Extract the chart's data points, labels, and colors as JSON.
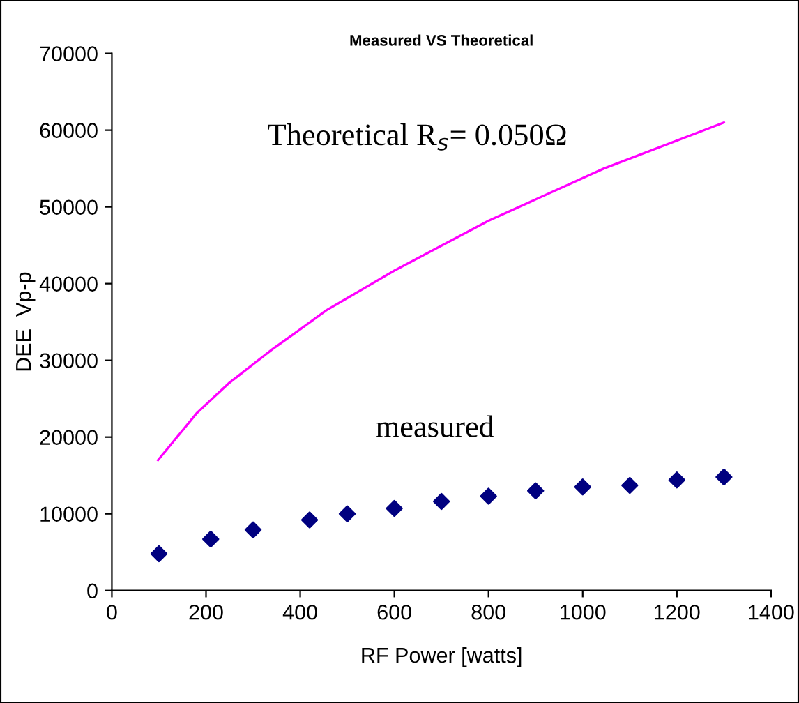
{
  "chart_data": {
    "type": "line",
    "title": "Measured VS Theoretical",
    "xlabel": "RF Power [watts]",
    "ylabel": "DEE  Vp-p",
    "xlim": [
      0,
      1400
    ],
    "xticks": [
      0,
      200,
      400,
      600,
      800,
      1000,
      1200,
      1400
    ],
    "ylim": [
      0,
      70000
    ],
    "yticks": [
      0,
      10000,
      20000,
      30000,
      40000,
      50000,
      60000,
      70000
    ],
    "grid": false,
    "legend": false,
    "annotations": [
      "Theoretical R$_{s}$= 0.050Ω",
      "measured"
    ],
    "series": [
      {
        "color": "#ff00ff",
        "marker": "none",
        "line_style": "solid",
        "x": [
          98,
          180,
          250,
          342,
          390,
          455,
          600,
          800,
          1045,
          1300
        ],
        "values": [
          17000,
          23100,
          27100,
          31500,
          33600,
          36500,
          41700,
          48200,
          55000,
          61000
        ]
      },
      {
        "type": "scatter",
        "color": "#000080",
        "marker": "diamond",
        "x": [
          100,
          210,
          300,
          420,
          500,
          600,
          700,
          800,
          900,
          1000,
          1100,
          1200,
          1300
        ],
        "values": [
          4800,
          6700,
          7900,
          9200,
          10000,
          10700,
          11600,
          12300,
          13000,
          13500,
          13700,
          14400,
          14800
        ]
      }
    ]
  }
}
